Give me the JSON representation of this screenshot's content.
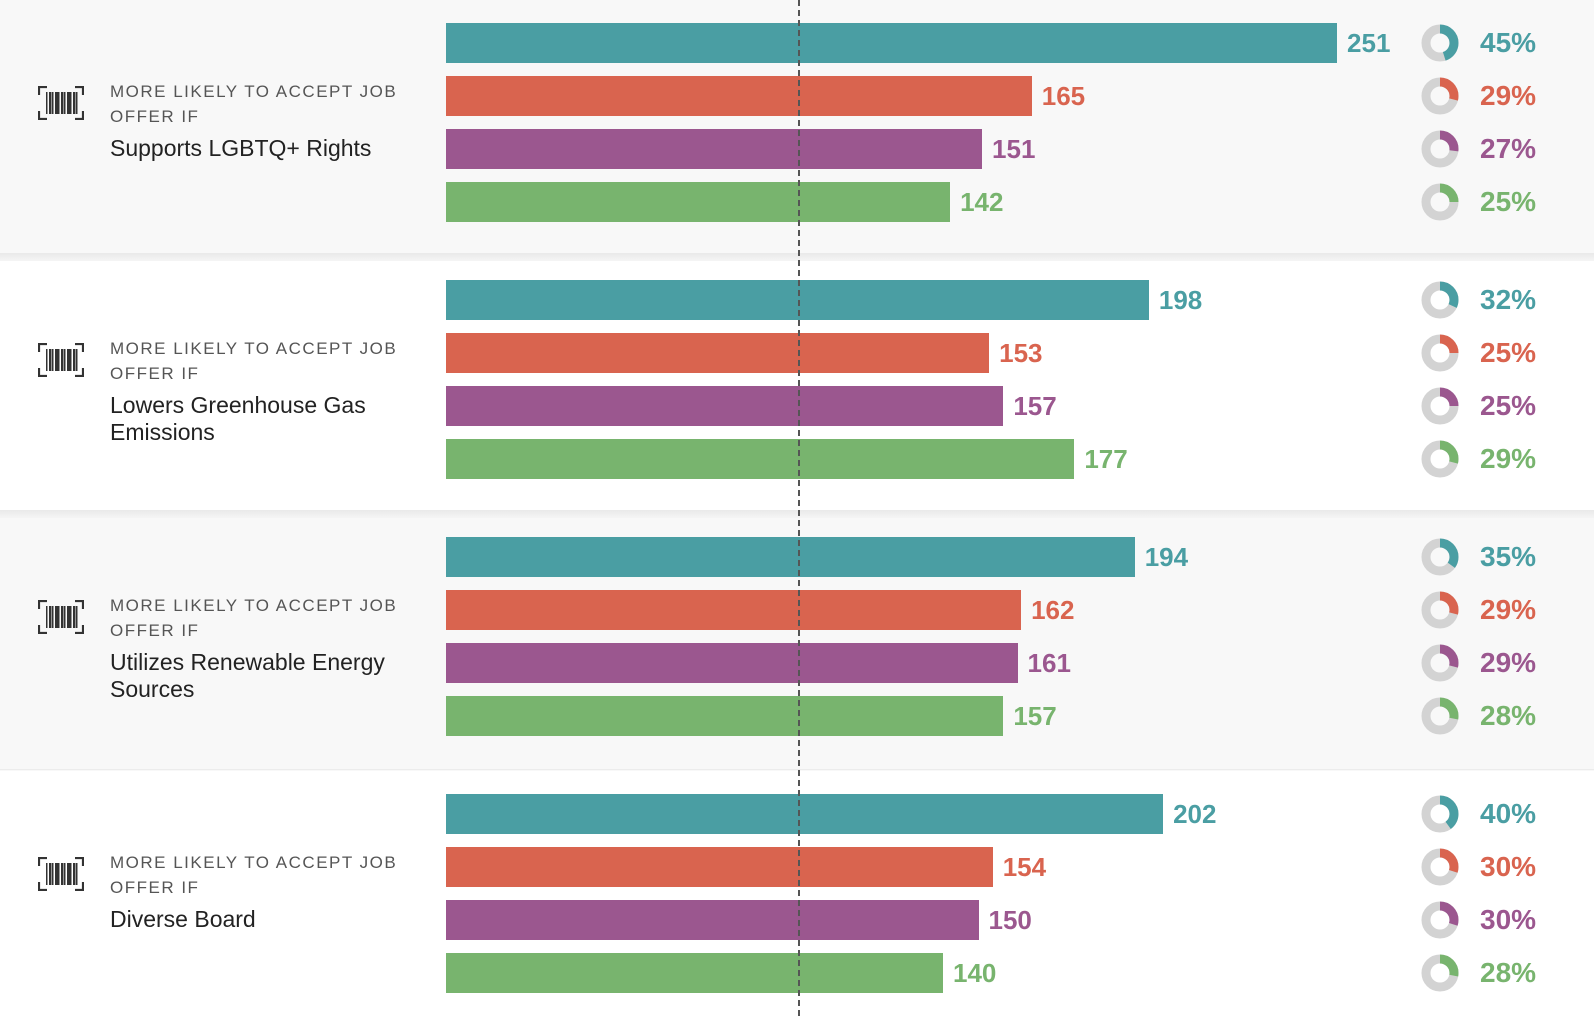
{
  "colors": [
    "#4a9ea3",
    "#d9644f",
    "#9b578f",
    "#78b46e"
  ],
  "icon": "barcode-icon",
  "chart_data": {
    "type": "bar",
    "orientation": "horizontal",
    "xlim": [
      0,
      290
    ],
    "groups": [
      {
        "kicker": "MORE LIKELY TO ACCEPT JOB OFFER IF",
        "title": "Supports LGBTQ+ Rights",
        "values": [
          251,
          165,
          151,
          142
        ],
        "value_labels": [
          "251",
          "165",
          "151",
          "142"
        ],
        "percents": [
          45,
          29,
          27,
          25
        ],
        "percent_labels": [
          "45%",
          "29%",
          "27%",
          "25%"
        ]
      },
      {
        "kicker": "MORE LIKELY TO ACCEPT JOB OFFER IF",
        "title": "Lowers Greenhouse Gas Emissions",
        "values": [
          198,
          153,
          157,
          177
        ],
        "value_labels": [
          "198",
          "153",
          "157",
          "177"
        ],
        "percents": [
          32,
          25,
          25,
          29
        ],
        "percent_labels": [
          "32%",
          "25%",
          "25%",
          "29%"
        ]
      },
      {
        "kicker": "MORE LIKELY TO ACCEPT JOB OFFER IF",
        "title": "Utilizes Renewable Energy Sources",
        "values": [
          194,
          162,
          161,
          157
        ],
        "value_labels": [
          "194",
          "162",
          "161",
          "157"
        ],
        "percents": [
          35,
          29,
          29,
          28
        ],
        "percent_labels": [
          "35%",
          "29%",
          "29%",
          "28%"
        ]
      },
      {
        "kicker": "MORE LIKELY TO ACCEPT JOB OFFER IF",
        "title": "Diverse Board",
        "values": [
          202,
          154,
          150,
          140
        ],
        "value_labels": [
          "202",
          "154",
          "150",
          "140"
        ],
        "percents": [
          40,
          30,
          30,
          28
        ],
        "percent_labels": [
          "40%",
          "30%",
          "30%",
          "28%"
        ]
      }
    ],
    "reference_value": 100,
    "grid": false,
    "legend": "none"
  }
}
